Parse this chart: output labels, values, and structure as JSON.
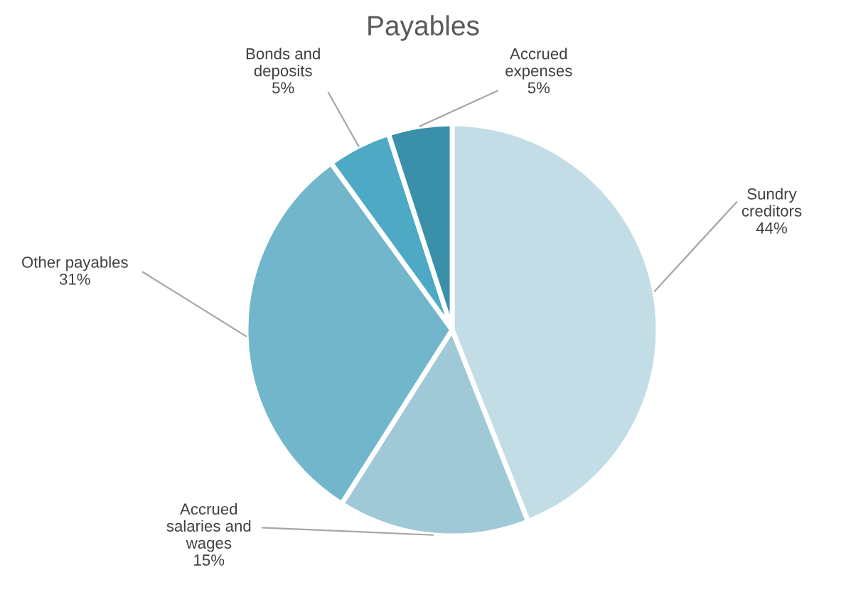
{
  "chart_data": {
    "type": "pie",
    "title": "Payables",
    "categories": [
      "Sundry creditors",
      "Accrued salaries and wages",
      "Other payables",
      "Bonds and deposits",
      "Accrued expenses"
    ],
    "values": [
      44,
      15,
      31,
      5,
      5
    ],
    "value_labels": [
      "44%",
      "15%",
      "31%",
      "5%",
      "5%"
    ],
    "colors": [
      "#c3dde6",
      "#a0c9d8",
      "#72b6cb",
      "#4ea9c4",
      "#3a90a9"
    ]
  }
}
